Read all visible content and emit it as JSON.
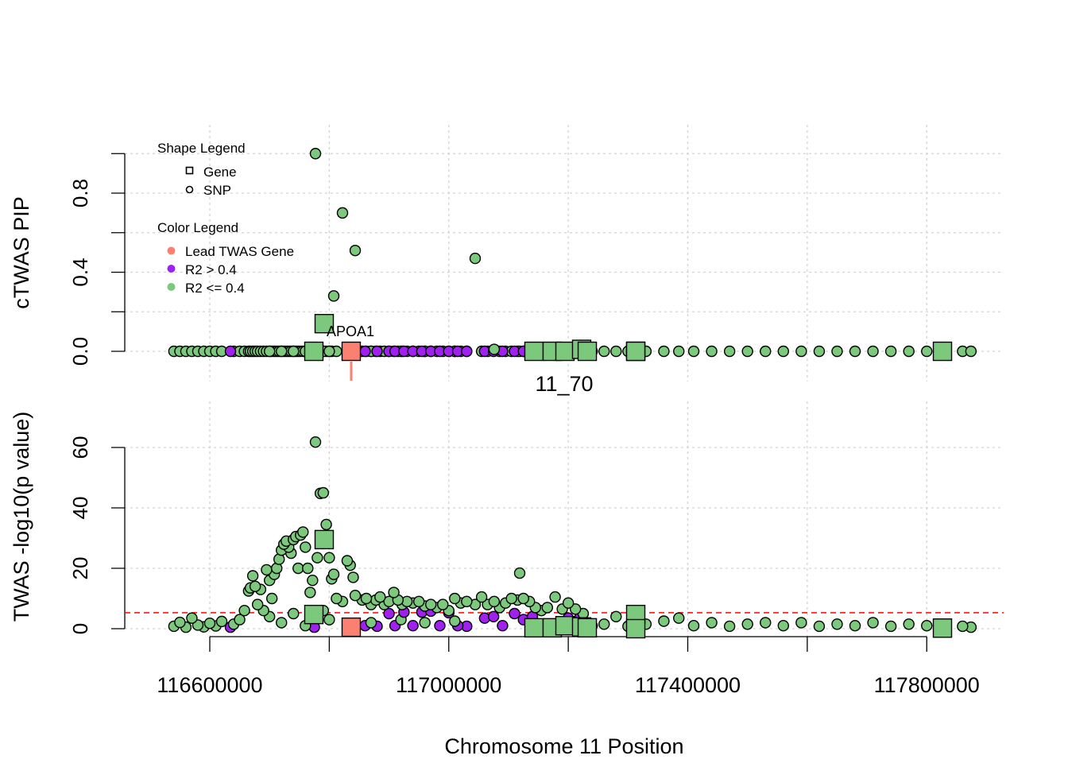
{
  "chart_data": [
    {
      "type": "scatter",
      "panel": "top",
      "ylabel": "cTWAS PIP",
      "xlim": [
        116457700,
        117928700
      ],
      "ylim": [
        0,
        1
      ],
      "yticks": [
        0,
        0.2,
        0.4,
        0.6,
        0.8,
        1.0
      ],
      "ytick_labels": [
        "0.0",
        "0.4",
        "0.8"
      ],
      "grid": true,
      "region_label": "11_70",
      "gene_label": "APOA1",
      "legend": {
        "placement": "top-left",
        "shape_title": "Shape Legend",
        "shape_items": [
          {
            "shape": "square",
            "label": "Gene"
          },
          {
            "shape": "circle",
            "label": "SNP"
          }
        ],
        "color_title": "Color Legend",
        "color_items": [
          {
            "key": "lead",
            "label": "Lead TWAS Gene",
            "color": "#FA8072"
          },
          {
            "key": "p",
            "label": "R2 > 0.4",
            "color": "#A020F0"
          },
          {
            "key": "g",
            "label": "R2 <= 0.4",
            "color": "#7CC87C"
          }
        ]
      }
    },
    {
      "type": "scatter",
      "panel": "bottom",
      "ylabel": "TWAS -log10(p value)",
      "xlabel": "Chromosome 11 Position",
      "xlim": [
        116457700,
        117928700
      ],
      "ylim": [
        0,
        63
      ],
      "yticks": [
        0,
        20,
        40,
        60
      ],
      "ytick_labels": [
        "0",
        "20",
        "40",
        "60"
      ],
      "xticks": [
        116600000,
        116800000,
        117000000,
        117200000,
        117400000,
        117600000,
        117800000
      ],
      "xtick_labels": [
        "116600000",
        "117000000",
        "117400000",
        "117800000"
      ],
      "threshold": 5.3,
      "threshold_color": "#FF0000",
      "grid": true
    }
  ],
  "snp_fields": [
    "position",
    "pip",
    "neg_log10_p",
    "color_key"
  ],
  "snps": [
    [
      116540000,
      0,
      0.8,
      "g"
    ],
    [
      116550000,
      0,
      2.1,
      "g"
    ],
    [
      116560000,
      0,
      0.5,
      "g"
    ],
    [
      116570000,
      0,
      3.5,
      "g"
    ],
    [
      116580000,
      0,
      1.2,
      "g"
    ],
    [
      116590000,
      0,
      0.6,
      "g"
    ],
    [
      116600000,
      0,
      1.8,
      "g"
    ],
    [
      116610000,
      0,
      0.9,
      "g"
    ],
    [
      116620000,
      0,
      2.4,
      "g"
    ],
    [
      116640000,
      0,
      1.5,
      "g"
    ],
    [
      116650000,
      0,
      3.0,
      "g"
    ],
    [
      116658000,
      0,
      6.0,
      "g"
    ],
    [
      116665000,
      0,
      12.5,
      "g"
    ],
    [
      116668000,
      0,
      13.5,
      "g"
    ],
    [
      116672000,
      0,
      17.5,
      "g"
    ],
    [
      116676000,
      0,
      14,
      "g"
    ],
    [
      116680000,
      0,
      8,
      "g"
    ],
    [
      116685000,
      0,
      13,
      "g"
    ],
    [
      116690000,
      0,
      6,
      "g"
    ],
    [
      116695000,
      0,
      19.5,
      "g"
    ],
    [
      116700000,
      0,
      16,
      "g"
    ],
    [
      116704000,
      0,
      10,
      "g"
    ],
    [
      116708000,
      0,
      18,
      "g"
    ],
    [
      116712000,
      0,
      20,
      "g"
    ],
    [
      116716000,
      0,
      23,
      "g"
    ],
    [
      116720000,
      0,
      26,
      "g"
    ],
    [
      116724000,
      0,
      28,
      "g"
    ],
    [
      116728000,
      0,
      29,
      "g"
    ],
    [
      116732000,
      0,
      27,
      "g"
    ],
    [
      116736000,
      0,
      25,
      "g"
    ],
    [
      116740000,
      0,
      29.5,
      "g"
    ],
    [
      116744000,
      0,
      30.5,
      "g"
    ],
    [
      116748000,
      0,
      20,
      "g"
    ],
    [
      116752000,
      0,
      31,
      "g"
    ],
    [
      116756000,
      0,
      32,
      "g"
    ],
    [
      116760000,
      0,
      27,
      "g"
    ],
    [
      116764000,
      0,
      20,
      "g"
    ],
    [
      116768000,
      0,
      12,
      "g"
    ],
    [
      116772000,
      0,
      16,
      "g"
    ],
    [
      116780000,
      0,
      23.5,
      "g"
    ],
    [
      116785000,
      0,
      44.8,
      "g"
    ],
    [
      116790000,
      0,
      45,
      "g"
    ],
    [
      116795000,
      0,
      34.5,
      "g"
    ],
    [
      116800000,
      0,
      23.5,
      "g"
    ],
    [
      116804000,
      0,
      16.5,
      "g"
    ],
    [
      116812000,
      0,
      10,
      "g"
    ],
    [
      116830000,
      0,
      22.5,
      "g"
    ],
    [
      116835000,
      0,
      21,
      "g"
    ],
    [
      116840000,
      0,
      17,
      "g"
    ],
    [
      116700000,
      0,
      4,
      "g"
    ],
    [
      116720000,
      0,
      2,
      "g"
    ],
    [
      116740000,
      0,
      5,
      "g"
    ],
    [
      116760000,
      0,
      1,
      "g"
    ],
    [
      116790000,
      0,
      6,
      "g"
    ],
    [
      116800000,
      0,
      3,
      "g"
    ],
    [
      116855000,
      0,
      9.5,
      "g"
    ],
    [
      116862000,
      0,
      10,
      "g"
    ],
    [
      116870000,
      0,
      8,
      "g"
    ],
    [
      116878000,
      0,
      9.5,
      "g"
    ],
    [
      116885000,
      0,
      10.5,
      "g"
    ],
    [
      116892000,
      0,
      8,
      "g"
    ],
    [
      116900000,
      0,
      9,
      "g"
    ],
    [
      116908000,
      0,
      12,
      "g"
    ],
    [
      116915000,
      0,
      9.5,
      "g"
    ],
    [
      116922000,
      0,
      8,
      "g"
    ],
    [
      116930000,
      0,
      9,
      "g"
    ],
    [
      116940000,
      0,
      8.5,
      "g"
    ],
    [
      116950000,
      0,
      9,
      "g"
    ],
    [
      116960000,
      0,
      7.5,
      "g"
    ],
    [
      116970000,
      0,
      8,
      "g"
    ],
    [
      116980000,
      0,
      7,
      "g"
    ],
    [
      116990000,
      0,
      8,
      "g"
    ],
    [
      117000000,
      0,
      6,
      "g"
    ],
    [
      116870000,
      0,
      2,
      "g"
    ],
    [
      116920000,
      0,
      3,
      "g"
    ],
    [
      116960000,
      0,
      2,
      "g"
    ],
    [
      117010000,
      0,
      2.5,
      "g"
    ],
    [
      117010000,
      0,
      10,
      "g"
    ],
    [
      117020000,
      0,
      8.5,
      "g"
    ],
    [
      117030000,
      0,
      9,
      "g"
    ],
    [
      117055000,
      0,
      10.5,
      "g"
    ],
    [
      117065000,
      0,
      8,
      "g"
    ],
    [
      117085000,
      0,
      7,
      "g"
    ],
    [
      117095000,
      0,
      8.5,
      "g"
    ],
    [
      117105000,
      0,
      10,
      "g"
    ],
    [
      117115000,
      0,
      9.5,
      "g"
    ],
    [
      117118700,
      0,
      18.4,
      "g"
    ],
    [
      117125000,
      0,
      10,
      "g"
    ],
    [
      117135000,
      0,
      9,
      "g"
    ],
    [
      117145000,
      0,
      7,
      "g"
    ],
    [
      117155000,
      0,
      6,
      "g"
    ],
    [
      117165000,
      0,
      7,
      "g"
    ],
    [
      117178000,
      0,
      10.5,
      "g"
    ],
    [
      117190000,
      0,
      6.5,
      "g"
    ],
    [
      117200000,
      0,
      8.5,
      "g"
    ],
    [
      117212000,
      0,
      6.5,
      "g"
    ],
    [
      117225000,
      0,
      5,
      "g"
    ],
    [
      117240000,
      0,
      1,
      "g"
    ],
    [
      116634600,
      0,
      0.5,
      "p"
    ],
    [
      116775000,
      0,
      0.5,
      "p"
    ],
    [
      116860000,
      0,
      1,
      "p"
    ],
    [
      116880000,
      0,
      0.8,
      "p"
    ],
    [
      116900000,
      0,
      5,
      "p"
    ],
    [
      116910000,
      0,
      1,
      "p"
    ],
    [
      116925000,
      0,
      5.5,
      "p"
    ],
    [
      116940000,
      0,
      1,
      "p"
    ],
    [
      116955000,
      0,
      5.5,
      "p"
    ],
    [
      116970000,
      0,
      5.8,
      "p"
    ],
    [
      116985000,
      0,
      1,
      "p"
    ],
    [
      117000000,
      0,
      5.3,
      "p"
    ],
    [
      117015000,
      0,
      1,
      "p"
    ],
    [
      117030000,
      0,
      0.8,
      "p"
    ],
    [
      117060000,
      0,
      3.5,
      "p"
    ],
    [
      117075000,
      0,
      4,
      "p"
    ],
    [
      117090000,
      0,
      1,
      "p"
    ],
    [
      117110000,
      0,
      5,
      "p"
    ],
    [
      117125000,
      0,
      3,
      "p"
    ],
    [
      117140000,
      0,
      4,
      "p"
    ],
    [
      117170000,
      0,
      0.8,
      "p"
    ],
    [
      117200000,
      0,
      3.5,
      "p"
    ],
    [
      117220000,
      0,
      4,
      "p"
    ],
    [
      117315000,
      0,
      0.5,
      "p"
    ],
    [
      117260000,
      0,
      1.5,
      "g"
    ],
    [
      117280000,
      0,
      4,
      "g"
    ],
    [
      117300000,
      0,
      0.8,
      "g"
    ],
    [
      117330000,
      0,
      1.5,
      "g"
    ],
    [
      117360000,
      0,
      2.5,
      "g"
    ],
    [
      117385000,
      0,
      3.5,
      "g"
    ],
    [
      117410000,
      0,
      1,
      "g"
    ],
    [
      117440000,
      0,
      2,
      "g"
    ],
    [
      117470000,
      0,
      0.8,
      "g"
    ],
    [
      117500000,
      0,
      1.5,
      "g"
    ],
    [
      117530000,
      0,
      2,
      "g"
    ],
    [
      117560000,
      0,
      1,
      "g"
    ],
    [
      117590000,
      0,
      2,
      "g"
    ],
    [
      117620000,
      0,
      0.8,
      "g"
    ],
    [
      117650000,
      0,
      1.5,
      "g"
    ],
    [
      117680000,
      0,
      1,
      "g"
    ],
    [
      117710000,
      0,
      2,
      "g"
    ],
    [
      117740000,
      0,
      0.8,
      "g"
    ],
    [
      117770000,
      0,
      1.5,
      "g"
    ],
    [
      117800000,
      0,
      1,
      "g"
    ],
    [
      117830000,
      0,
      1.2,
      "g"
    ],
    [
      117860000,
      0,
      0.8,
      "g"
    ],
    [
      117874000,
      0,
      0.5,
      "g"
    ],
    [
      116776900,
      1.0,
      61.8,
      "g"
    ],
    [
      116807500,
      0.28,
      18,
      "g"
    ],
    [
      116822100,
      0.7,
      9,
      "g"
    ],
    [
      116843400,
      0.51,
      11,
      "g"
    ],
    [
      117044200,
      0.47,
      8,
      "g"
    ],
    [
      117076000,
      0.01,
      9,
      "g"
    ]
  ],
  "gene_fields": [
    "position",
    "pip",
    "neg_log10_p",
    "color_key"
  ],
  "genes": [
    [
      116774200,
      0.0,
      4.7,
      "g"
    ],
    [
      116791500,
      0.14,
      29.5,
      "g"
    ],
    [
      117142600,
      0.0,
      0.3,
      "g"
    ],
    [
      117173200,
      0.0,
      0.3,
      "g"
    ],
    [
      117194500,
      0.0,
      1.0,
      "g"
    ],
    [
      117222400,
      0.01,
      0.6,
      "g"
    ],
    [
      117231800,
      0.0,
      0.3,
      "g"
    ],
    [
      117312900,
      0.0,
      4.7,
      "g"
    ],
    [
      117312900,
      0.0,
      0.0,
      "g"
    ],
    [
      117826300,
      0.0,
      0.2,
      "g"
    ],
    [
      116836700,
      0.0,
      0.5,
      "lead"
    ]
  ]
}
